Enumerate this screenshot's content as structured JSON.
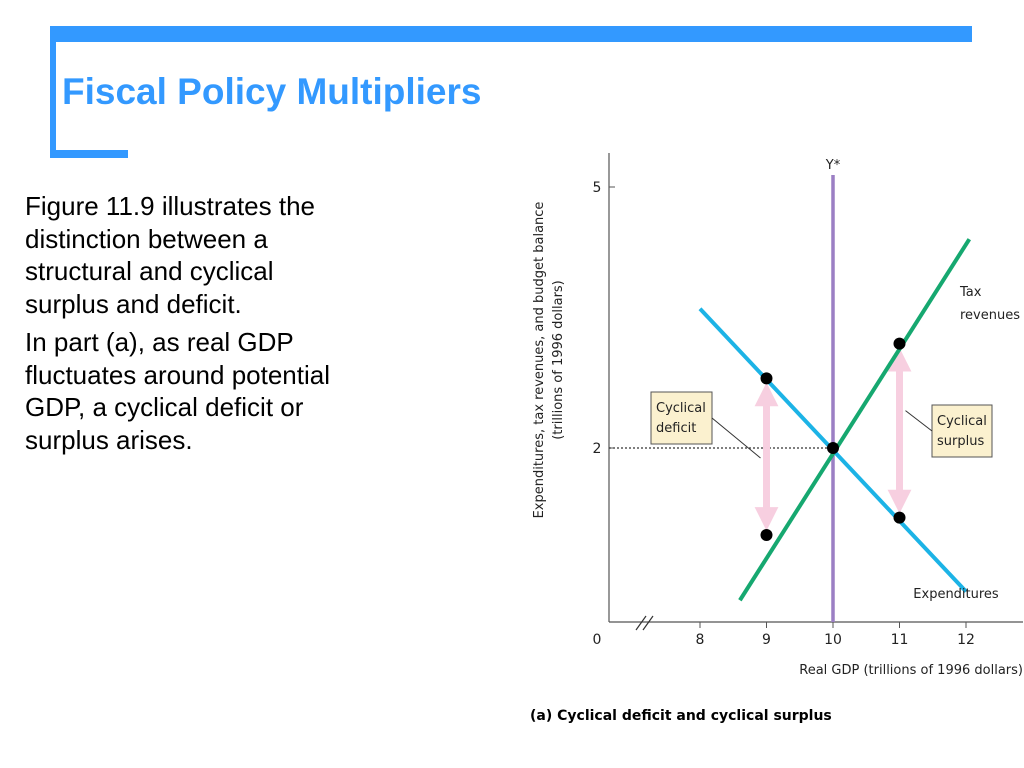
{
  "slide": {
    "title": "Fiscal Policy Multipliers",
    "paragraphs": [
      "Figure 11.9 illustrates the distinction between a structural and cyclical surplus and deficit.",
      "In part (a), as real GDP fluctuates around potential GDP, a cyclical deficit or surplus arises."
    ],
    "accent_color": "#3399ff"
  },
  "chart_data": {
    "type": "line",
    "caption": "(a) Cyclical deficit and cyclical surplus",
    "xlabel": "Real GDP (trillions of 1996 dollars)",
    "ylabel": "Expenditures, tax revenues, and budget balance (trillions of 1996 dollars)",
    "x_ticks": [
      "0",
      "8",
      "9",
      "10",
      "11",
      "12"
    ],
    "y_ticks": [
      "0",
      "2",
      "5"
    ],
    "axis_break": true,
    "potential_gdp": {
      "label": "Y*",
      "x": 10,
      "color": "#9b7fc4"
    },
    "reference_level": {
      "y": 2,
      "style": "dotted"
    },
    "series": [
      {
        "name": "Expenditures",
        "color": "#1cb3e6",
        "points": [
          [
            8,
            3.6
          ],
          [
            12,
            0.35
          ]
        ]
      },
      {
        "name": "Tax revenues",
        "color": "#16a870",
        "points": [
          [
            8.6,
            0.25
          ],
          [
            12.05,
            4.4
          ]
        ]
      }
    ],
    "points": [
      {
        "x": 9,
        "y": 2.8
      },
      {
        "x": 9,
        "y": 1.0
      },
      {
        "x": 10,
        "y": 2.0
      },
      {
        "x": 11,
        "y": 3.2
      },
      {
        "x": 11,
        "y": 1.2
      }
    ],
    "annotations": [
      {
        "label": "Cyclical deficit",
        "x": 9,
        "y_top": 2.8,
        "y_bottom": 1.0,
        "side": "left"
      },
      {
        "label": "Cyclical surplus",
        "x": 11,
        "y_top": 3.2,
        "y_bottom": 1.2,
        "side": "right"
      }
    ],
    "arrow_color": "#f7cfe0",
    "label_box_color": "#fbf1cf"
  }
}
